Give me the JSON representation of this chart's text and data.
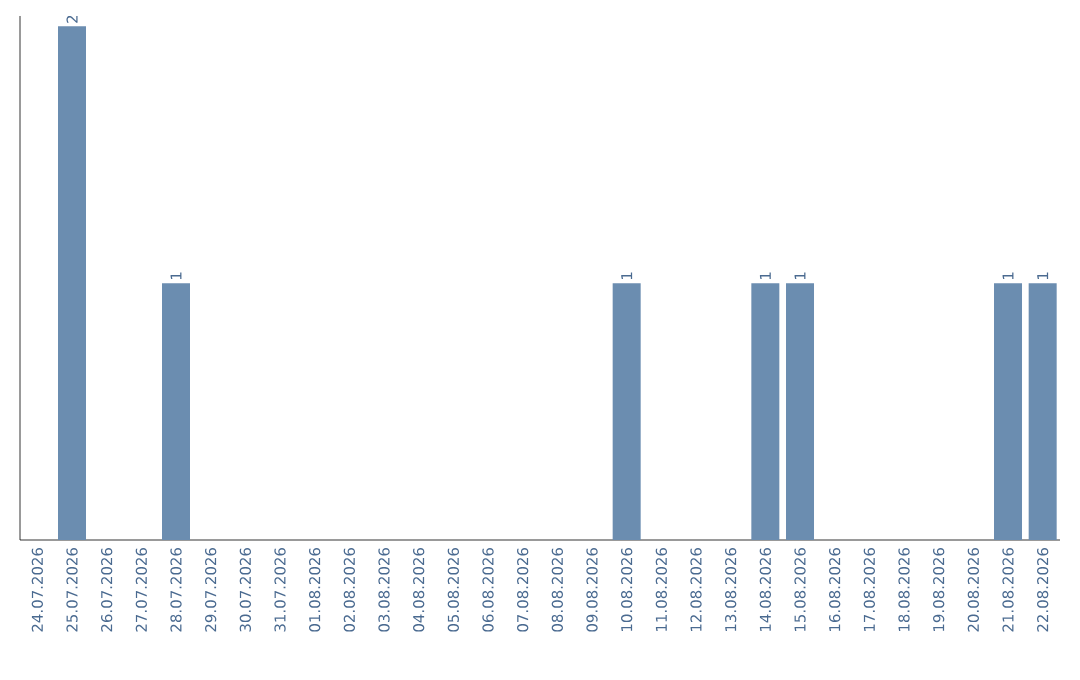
{
  "chart_data": {
    "type": "bar",
    "categories": [
      "24.07.2026",
      "25.07.2026",
      "26.07.2026",
      "27.07.2026",
      "28.07.2026",
      "29.07.2026",
      "30.07.2026",
      "31.07.2026",
      "01.08.2026",
      "02.08.2026",
      "03.08.2026",
      "04.08.2026",
      "05.08.2026",
      "06.08.2026",
      "07.08.2026",
      "08.08.2026",
      "09.08.2026",
      "10.08.2026",
      "11.08.2026",
      "12.08.2026",
      "13.08.2026",
      "14.08.2026",
      "15.08.2026",
      "16.08.2026",
      "17.08.2026",
      "18.08.2026",
      "19.08.2026",
      "20.08.2026",
      "21.08.2026",
      "22.08.2026"
    ],
    "values": [
      0,
      2,
      0,
      0,
      1,
      0,
      0,
      0,
      0,
      0,
      0,
      0,
      0,
      0,
      0,
      0,
      0,
      1,
      0,
      0,
      0,
      1,
      1,
      0,
      0,
      0,
      0,
      0,
      1,
      1
    ],
    "value_labels": [
      null,
      "2",
      null,
      null,
      "1",
      null,
      null,
      null,
      null,
      null,
      null,
      null,
      null,
      null,
      null,
      null,
      null,
      "1",
      null,
      null,
      null,
      "1",
      "1",
      null,
      null,
      null,
      null,
      null,
      "1",
      "1"
    ],
    "color": "#6b8db0",
    "ylim": [
      0,
      2.04
    ],
    "tick_labels": "x",
    "grid": false
  }
}
